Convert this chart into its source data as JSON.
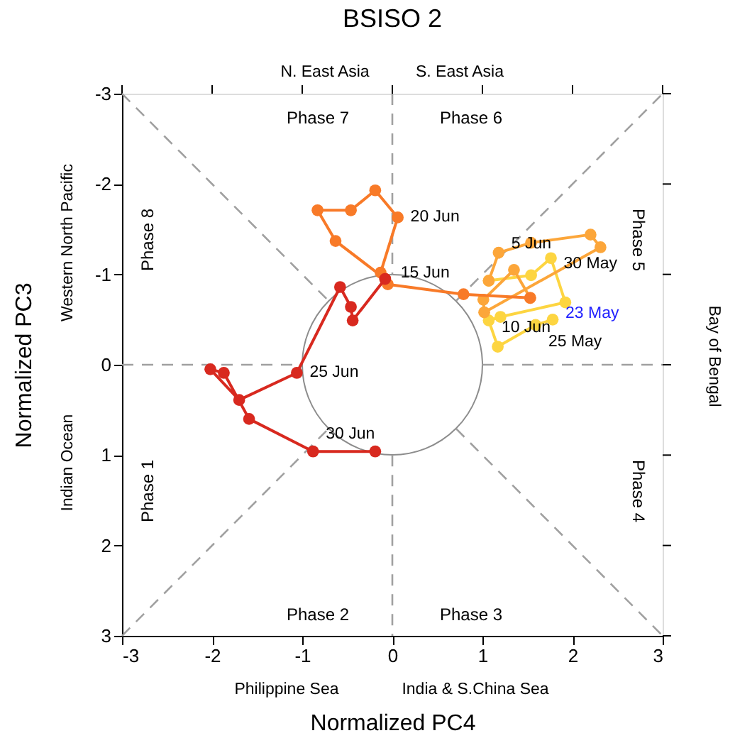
{
  "chart_data": {
    "type": "line",
    "title": "BSISO 2",
    "xlabel": "Normalized PC4",
    "ylabel": "Normalized PC3",
    "xlim": [
      -3,
      3
    ],
    "ylim": [
      3,
      -3
    ],
    "xticks": [
      -3,
      -2,
      -1,
      0,
      1,
      2,
      3
    ],
    "yticks": [
      -3,
      -2,
      -1,
      0,
      1,
      2,
      3
    ],
    "grid": false,
    "series": [
      {
        "color": "#a0a0a0",
        "line_style": "dashed",
        "marker": "none",
        "x": [
          -3,
          -0.71
        ],
        "values": [
          -3,
          -0.71
        ]
      },
      {
        "color": "#a0a0a0",
        "line_style": "dashed",
        "marker": "none",
        "x": [
          0.71,
          3
        ],
        "values": [
          0.71,
          3
        ]
      },
      {
        "color": "#a0a0a0",
        "line_style": "dashed",
        "marker": "none",
        "x": [
          -3,
          -0.71
        ],
        "values": [
          3,
          0.71
        ]
      },
      {
        "color": "#a0a0a0",
        "line_style": "dashed",
        "marker": "none",
        "x": [
          0.71,
          3
        ],
        "values": [
          -0.71,
          -3
        ]
      },
      {
        "color": "#a0a0a0",
        "line_style": "dashed",
        "marker": "none",
        "x": [
          0,
          0
        ],
        "values": [
          -3,
          -1
        ]
      },
      {
        "color": "#a0a0a0",
        "line_style": "dashed",
        "marker": "none",
        "x": [
          0,
          0
        ],
        "values": [
          1,
          3
        ]
      },
      {
        "color": "#a0a0a0",
        "line_style": "dashed",
        "marker": "none",
        "x": [
          -3,
          -1
        ],
        "values": [
          0,
          0
        ]
      },
      {
        "color": "#a0a0a0",
        "line_style": "dashed",
        "marker": "none",
        "x": [
          1,
          3
        ],
        "values": [
          0,
          0
        ]
      },
      {
        "color": "#fdd541",
        "line_style": "solid",
        "marker": "circle",
        "x": [
          1.78,
          1.59,
          1.17,
          1.07,
          1.2,
          1.92,
          1.76,
          1.54,
          1.07
        ],
        "values": [
          -0.5,
          -0.44,
          -0.2,
          -0.49,
          -0.53,
          -0.69,
          -1.18,
          -0.99,
          -0.93
        ]
      },
      {
        "color": "#fca63a",
        "line_style": "solid",
        "marker": "circle",
        "x": [
          1.07,
          1.18,
          1.54,
          2.2,
          2.31,
          1.02,
          1.01,
          1.35,
          1.53
        ],
        "values": [
          -0.93,
          -1.24,
          -1.35,
          -1.44,
          -1.3,
          -0.58,
          -0.72,
          -1.05,
          -0.74
        ]
      },
      {
        "color": "#f87a28",
        "line_style": "solid",
        "marker": "circle",
        "x": [
          1.53,
          0.79,
          -0.05,
          -0.13,
          0.06,
          -0.19,
          -0.46,
          -0.83,
          -0.63,
          -0.08
        ],
        "values": [
          -0.74,
          -0.78,
          -0.89,
          -1.02,
          -1.63,
          -1.93,
          -1.71,
          -1.71,
          -1.37,
          -0.95
        ]
      },
      {
        "color": "#d8291f",
        "line_style": "solid",
        "marker": "circle",
        "x": [
          -0.08,
          -0.44,
          -0.46,
          -0.58,
          -1.06,
          -1.7,
          -2.02,
          -1.87,
          -1.59,
          -0.88,
          -0.19
        ],
        "values": [
          -0.95,
          -0.49,
          -0.64,
          -0.86,
          0.09,
          0.39,
          0.05,
          0.09,
          0.6,
          0.96,
          0.96
        ]
      }
    ],
    "annotations": [
      "Phase 7",
      "Phase 6",
      "Phase 5",
      "Phase 4",
      "Phase 3",
      "Phase 2",
      "Phase 1",
      "Phase 8",
      "N. East Asia",
      "S. East Asia",
      "Bay of Bengal",
      "Western North Pacific",
      "Indian Ocean",
      "Philippine Sea",
      "India & S.China Sea",
      {
        "text": "23 May",
        "x": 1.78,
        "y": -0.5
      },
      {
        "text": "25 May",
        "x": 1.59,
        "y": -0.44
      },
      {
        "text": "30 May",
        "x": 1.76,
        "y": -1.18
      },
      {
        "text": "5  Jun",
        "x": 1.18,
        "y": -1.24
      },
      {
        "text": "10  Jun",
        "x": 1.07,
        "y": -0.49
      },
      {
        "text": "15  Jun",
        "x": -0.05,
        "y": -0.89
      },
      {
        "text": "20  Jun",
        "x": 0.06,
        "y": -1.63
      },
      {
        "text": "25  Jun",
        "x": -1.06,
        "y": 0.09
      },
      {
        "text": "30  Jun",
        "x": -0.88,
        "y": 0.96
      }
    ]
  }
}
